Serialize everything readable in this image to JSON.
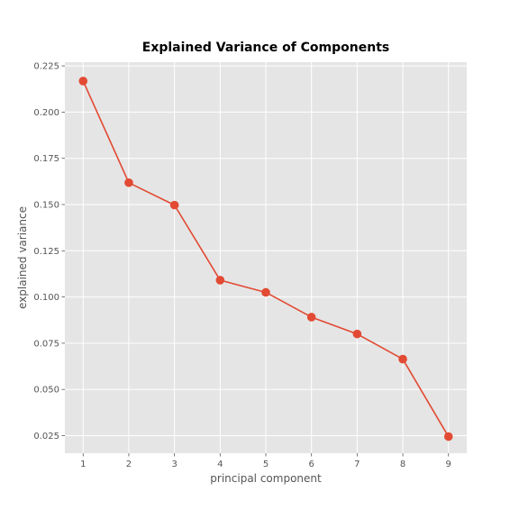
{
  "chart_data": {
    "type": "line",
    "title": "Explained Variance of Components",
    "xlabel": "principal component",
    "ylabel": "explained variance",
    "x": [
      1,
      2,
      3,
      4,
      5,
      6,
      7,
      8,
      9
    ],
    "x_tick_labels": [
      "1",
      "2",
      "3",
      "4",
      "5",
      "6",
      "7",
      "8",
      "9"
    ],
    "y_ticks": [
      0.025,
      0.05,
      0.075,
      0.1,
      0.125,
      0.15,
      0.175,
      0.2,
      0.225
    ],
    "y_tick_labels": [
      "0.025",
      "0.050",
      "0.075",
      "0.100",
      "0.125",
      "0.150",
      "0.175",
      "0.200",
      "0.225"
    ],
    "xlim": [
      0.6,
      9.4
    ],
    "ylim": [
      0.0155,
      0.227
    ],
    "grid": true,
    "series": [
      {
        "values": [
          0.2168,
          0.1618,
          0.1497,
          0.1091,
          0.1025,
          0.0891,
          0.08,
          0.0664,
          0.0245
        ],
        "color": "#e24a33",
        "marker": "circle"
      }
    ],
    "colors": {
      "plot_background": "#e5e5e5",
      "grid": "#ffffff",
      "text": "#555555"
    }
  }
}
